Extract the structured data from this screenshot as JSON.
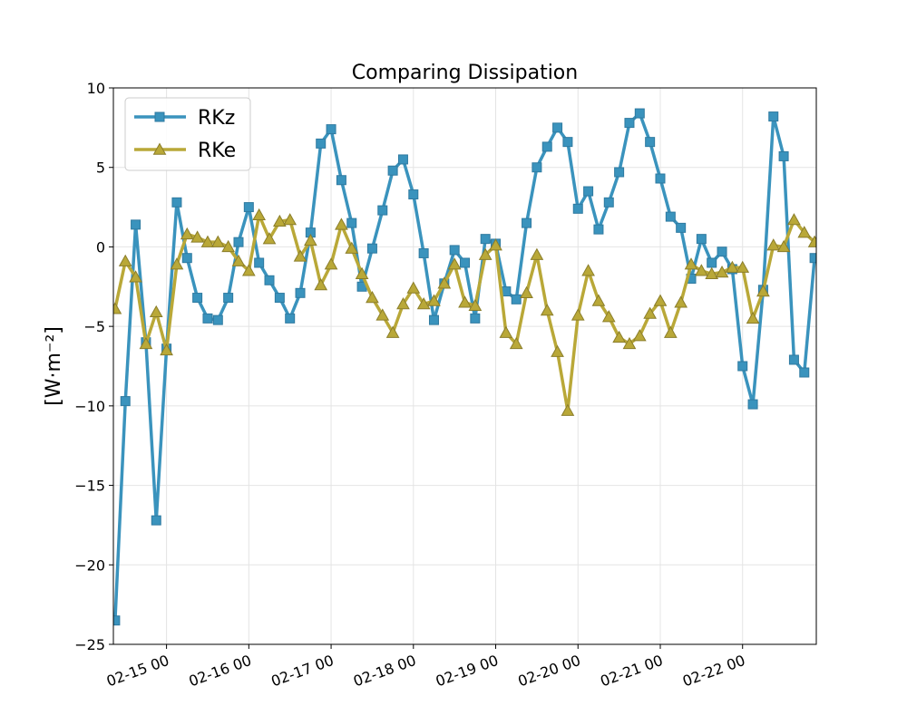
{
  "chart_data": {
    "type": "line",
    "title": "Comparing Dissipation",
    "xlabel": "",
    "ylabel": "[W·m⁻²]",
    "xlim": [
      "2025-02-14 08:30",
      "2025-02-22 21:30"
    ],
    "ylim": [
      -25,
      10
    ],
    "x_ticks": [
      "02-15 00",
      "02-16 00",
      "02-17 00",
      "02-18 00",
      "02-19 00",
      "02-20 00",
      "02-21 00",
      "02-22 00"
    ],
    "y_ticks": [
      10,
      5,
      0,
      -5,
      -10,
      -15,
      -20,
      -25
    ],
    "grid": true,
    "legend_position": "top-left",
    "x_time": [
      "2025-02-14 09:00",
      "2025-02-14 12:00",
      "2025-02-14 15:00",
      "2025-02-14 18:00",
      "2025-02-14 21:00",
      "2025-02-15 00:00",
      "2025-02-15 03:00",
      "2025-02-15 06:00",
      "2025-02-15 09:00",
      "2025-02-15 12:00",
      "2025-02-15 15:00",
      "2025-02-15 18:00",
      "2025-02-15 21:00",
      "2025-02-16 00:00",
      "2025-02-16 03:00",
      "2025-02-16 06:00",
      "2025-02-16 09:00",
      "2025-02-16 12:00",
      "2025-02-16 15:00",
      "2025-02-16 18:00",
      "2025-02-16 21:00",
      "2025-02-17 00:00",
      "2025-02-17 03:00",
      "2025-02-17 06:00",
      "2025-02-17 09:00",
      "2025-02-17 12:00",
      "2025-02-17 15:00",
      "2025-02-17 18:00",
      "2025-02-17 21:00",
      "2025-02-18 00:00",
      "2025-02-18 03:00",
      "2025-02-18 06:00",
      "2025-02-18 09:00",
      "2025-02-18 12:00",
      "2025-02-18 15:00",
      "2025-02-18 18:00",
      "2025-02-18 21:00",
      "2025-02-19 00:00",
      "2025-02-19 03:00",
      "2025-02-19 06:00",
      "2025-02-19 09:00",
      "2025-02-19 12:00",
      "2025-02-19 15:00",
      "2025-02-19 18:00",
      "2025-02-19 21:00",
      "2025-02-20 00:00",
      "2025-02-20 03:00",
      "2025-02-20 06:00",
      "2025-02-20 09:00",
      "2025-02-20 12:00",
      "2025-02-20 15:00",
      "2025-02-20 18:00",
      "2025-02-20 21:00",
      "2025-02-21 00:00",
      "2025-02-21 03:00",
      "2025-02-21 06:00",
      "2025-02-21 09:00",
      "2025-02-21 12:00",
      "2025-02-21 15:00",
      "2025-02-21 18:00",
      "2025-02-21 21:00",
      "2025-02-22 00:00",
      "2025-02-22 03:00",
      "2025-02-22 06:00",
      "2025-02-22 09:00",
      "2025-02-22 12:00",
      "2025-02-22 15:00",
      "2025-02-22 18:00",
      "2025-02-22 21:00"
    ],
    "series": [
      {
        "name": "RKz",
        "color": "#3a93bd",
        "marker": "square",
        "values": [
          -23.5,
          -9.7,
          1.4,
          -6.0,
          -17.2,
          -6.4,
          2.8,
          -0.7,
          -3.2,
          -4.5,
          -4.6,
          -3.2,
          0.3,
          2.5,
          -1.0,
          -2.1,
          -3.2,
          -4.5,
          -2.9,
          0.9,
          6.5,
          7.4,
          4.2,
          1.5,
          -2.5,
          -0.1,
          2.3,
          4.8,
          5.5,
          3.3,
          -0.4,
          -4.6,
          -2.3,
          -0.2,
          -1.0,
          -4.5,
          0.5,
          0.2,
          -2.8,
          -3.3,
          1.5,
          5.0,
          6.3,
          7.5,
          6.6,
          2.4,
          3.5,
          1.1,
          2.8,
          4.7,
          7.8,
          8.4,
          6.6,
          4.3,
          1.9,
          1.2,
          -2.0,
          0.5,
          -1.0,
          -0.3,
          -1.4,
          -7.5,
          -9.9,
          -2.7,
          8.2,
          5.7,
          -7.1,
          -7.9,
          -0.7
        ]
      },
      {
        "name": "RKe",
        "color": "#b9a838",
        "marker": "triangle",
        "values": [
          -3.9,
          -0.9,
          -1.9,
          -6.1,
          -4.1,
          -6.5,
          -1.1,
          0.8,
          0.6,
          0.3,
          0.3,
          0.0,
          -0.9,
          -1.5,
          2.0,
          0.5,
          1.6,
          1.7,
          -0.6,
          0.4,
          -2.4,
          -1.1,
          1.4,
          -0.1,
          -1.7,
          -3.2,
          -4.3,
          -5.4,
          -3.6,
          -2.6,
          -3.6,
          -3.4,
          -2.3,
          -1.1,
          -3.5,
          -3.7,
          -0.5,
          0.1,
          -5.4,
          -6.1,
          -2.9,
          -0.5,
          -4.0,
          -6.6,
          -10.3,
          -4.3,
          -1.5,
          -3.4,
          -4.4,
          -5.7,
          -6.1,
          -5.6,
          -4.2,
          -3.4,
          -5.4,
          -3.5,
          -1.1,
          -1.5,
          -1.7,
          -1.6,
          -1.3,
          -1.3,
          -4.5,
          -2.8,
          0.1,
          0.0,
          1.7,
          0.9,
          0.3
        ]
      }
    ]
  }
}
